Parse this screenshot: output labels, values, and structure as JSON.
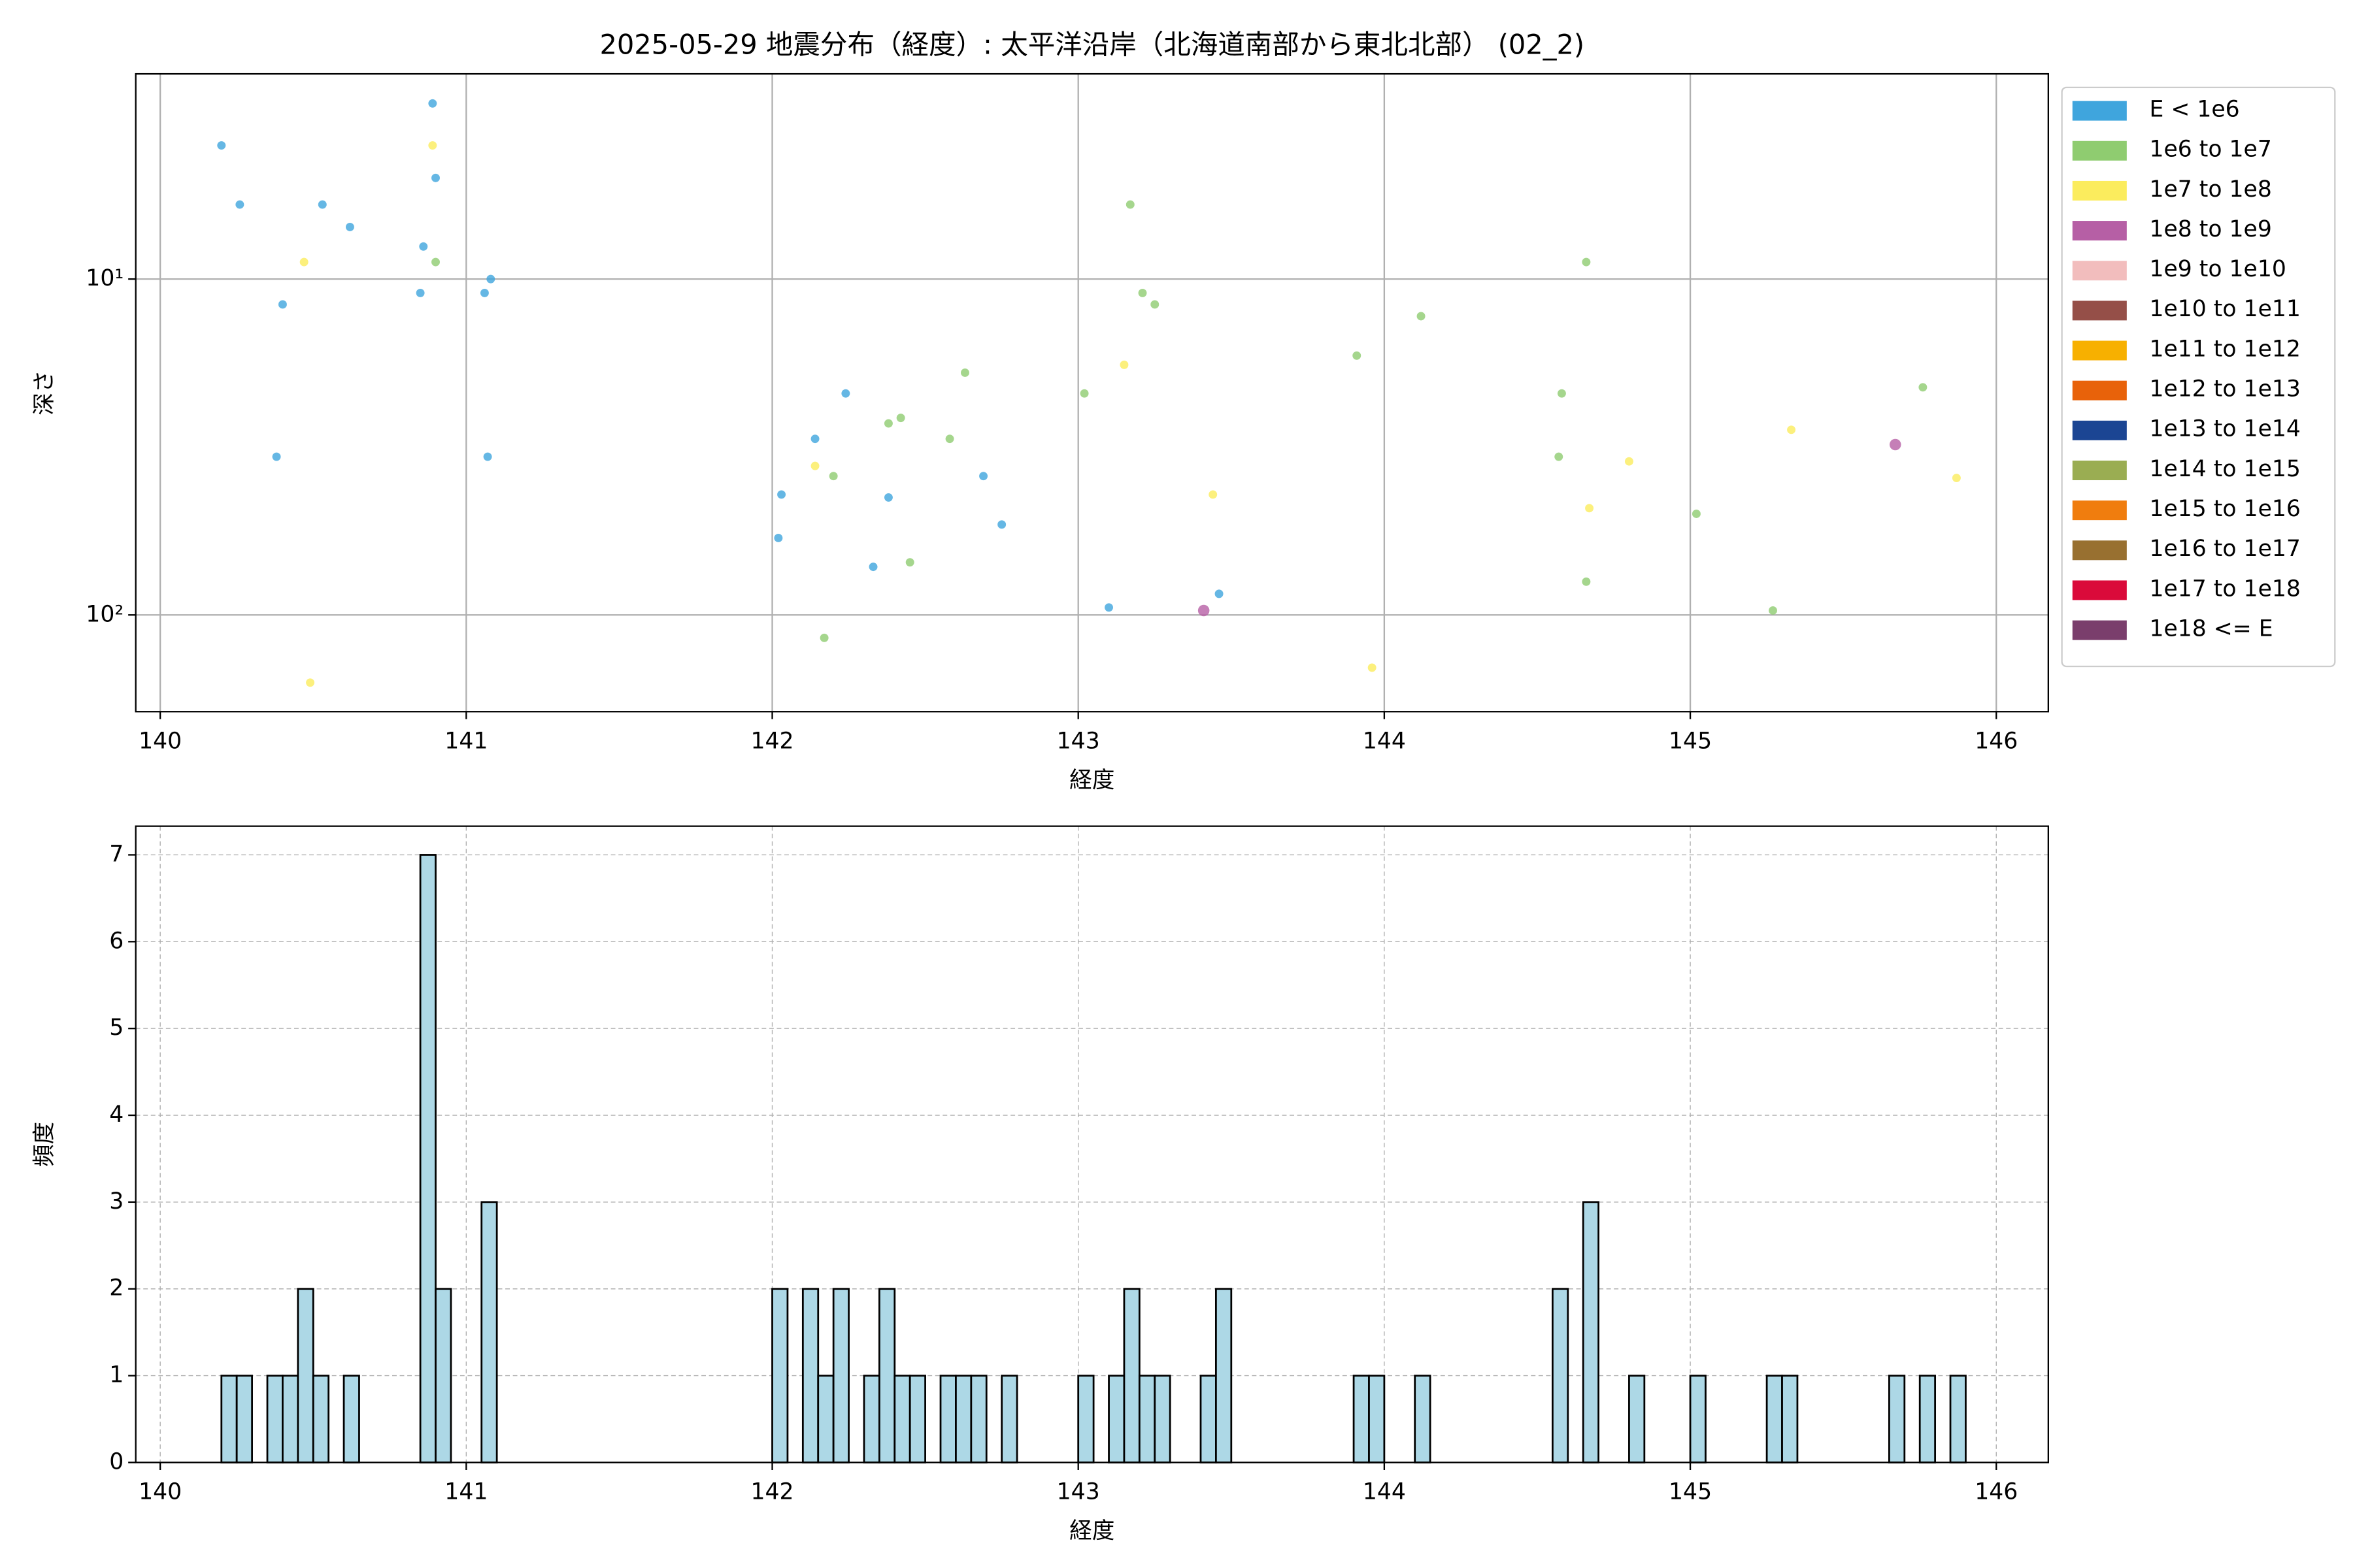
{
  "chart_data": [
    {
      "type": "scatter",
      "title": "2025-05-29 地震分布（経度）: 太平洋沿岸（北海道南部から東北北部） (02_2)",
      "xlabel": "経度",
      "ylabel": "深さ",
      "xlim": [
        139.92,
        146.17
      ],
      "xticks": [
        140,
        141,
        142,
        143,
        144,
        145,
        146
      ],
      "ylim": [
        2.45,
        194
      ],
      "y_log": true,
      "y_inverted": true,
      "yticks": [
        {
          "value": 10,
          "label": "10¹"
        },
        {
          "value": 100,
          "label": "10²"
        }
      ],
      "grid": true,
      "grid_style": "solid",
      "legend": "right",
      "series": [
        {
          "name": "E < 1e6",
          "color": "#3fa5dd",
          "x": [
            140.2,
            140.26,
            140.53,
            140.62,
            140.89,
            140.9,
            140.86,
            140.85,
            140.4,
            141.06,
            141.08,
            140.38,
            141.07,
            142.24,
            142.14,
            142.03,
            142.38,
            142.02,
            142.33,
            142.69,
            142.75,
            143.1,
            143.46
          ],
          "values": [
            4.0,
            6.0,
            6.0,
            7.0,
            3.0,
            5.0,
            8.0,
            11.0,
            11.9,
            11.0,
            10.0,
            33.8,
            33.8,
            21.9,
            29.9,
            43.8,
            44.7,
            59,
            71.9,
            38.6,
            53.8,
            95,
            86.5
          ]
        },
        {
          "name": "1e6 to 1e7",
          "color": "#8fcc70",
          "x": [
            140.9,
            143.17,
            143.21,
            143.25,
            142.63,
            143.02,
            142.42,
            142.38,
            142.58,
            142.2,
            142.45,
            142.17,
            143.91,
            144.12,
            144.66,
            144.58,
            144.57,
            144.66,
            145.02,
            145.27,
            145.76
          ],
          "values": [
            8.9,
            6.0,
            11.0,
            11.9,
            19,
            21.9,
            25.9,
            26.9,
            29.9,
            38.6,
            69.7,
            117,
            16.9,
            12.9,
            8.9,
            21.9,
            33.8,
            79.6,
            50,
            97,
            21
          ]
        },
        {
          "name": "1e7 to 1e8",
          "color": "#fbec5d",
          "x": [
            140.89,
            140.47,
            140.49,
            142.14,
            143.15,
            143.44,
            143.96,
            144.67,
            144.8,
            145.33,
            145.87
          ],
          "values": [
            4.0,
            8.9,
            159,
            36,
            18,
            43.8,
            143.5,
            48.1,
            34.9,
            28.1,
            39.1
          ]
        },
        {
          "name": "1e8 to 1e9",
          "color": "#b65fa5",
          "x": [
            143.41,
            145.67
          ],
          "values": [
            97,
            31.1
          ]
        },
        {
          "name": "1e9 to 1e10",
          "color": "#f2bdbd",
          "x": [],
          "values": []
        },
        {
          "name": "1e10 to 1e11",
          "color": "#954f48",
          "x": [],
          "values": []
        },
        {
          "name": "1e11 to 1e12",
          "color": "#f7b000",
          "x": [],
          "values": []
        },
        {
          "name": "1e12 to 1e13",
          "color": "#e8620a",
          "x": [],
          "values": []
        },
        {
          "name": "1e13 to 1e14",
          "color": "#1b4593",
          "x": [],
          "values": []
        },
        {
          "name": "1e14 to 1e15",
          "color": "#9aad52",
          "x": [],
          "values": []
        },
        {
          "name": "1e15 to 1e16",
          "color": "#f07d0e",
          "x": [],
          "values": []
        },
        {
          "name": "1e16 to 1e17",
          "color": "#987030",
          "x": [],
          "values": []
        },
        {
          "name": "1e17 to 1e18",
          "color": "#da0a3a",
          "x": [],
          "values": []
        },
        {
          "name": "1e18 <= E",
          "color": "#7a3e6c",
          "x": [],
          "values": []
        }
      ]
    },
    {
      "type": "histogram",
      "xlabel": "経度",
      "ylabel": "頻度",
      "xlim": [
        139.92,
        146.17
      ],
      "xticks": [
        140,
        141,
        142,
        143,
        144,
        145,
        146
      ],
      "ylim": [
        0,
        7.33
      ],
      "yticks": [
        0,
        1,
        2,
        3,
        4,
        5,
        6,
        7
      ],
      "grid": true,
      "grid_style": "dashed",
      "color": "#add8e6",
      "edgecolor": "#000000",
      "bins": [
        140.2,
        140.25,
        140.3,
        140.35,
        140.4,
        140.45,
        140.5,
        140.55,
        140.6,
        140.65,
        140.7,
        140.75,
        140.8,
        140.85,
        140.9,
        140.95,
        141.0,
        141.05,
        141.1,
        141.15,
        141.2,
        141.25,
        141.3,
        141.35,
        141.4,
        141.45,
        141.5,
        141.55,
        141.6,
        141.65,
        141.7,
        141.75,
        141.8,
        141.85,
        141.9,
        141.95,
        142.0,
        142.05,
        142.1,
        142.15,
        142.2,
        142.25,
        142.3,
        142.35,
        142.4,
        142.45,
        142.5,
        142.55,
        142.6,
        142.65,
        142.7,
        142.75,
        142.8,
        142.85,
        142.9,
        142.95,
        143.0,
        143.05,
        143.1,
        143.15,
        143.2,
        143.25,
        143.3,
        143.35,
        143.4,
        143.45,
        143.5,
        143.55,
        143.6,
        143.65,
        143.7,
        143.75,
        143.8,
        143.85,
        143.9,
        143.95,
        144.0,
        144.05,
        144.1,
        144.15,
        144.2,
        144.25,
        144.3,
        144.35,
        144.4,
        144.45,
        144.5,
        144.55,
        144.6,
        144.65,
        144.7,
        144.75,
        144.8,
        144.85,
        144.9,
        144.95,
        145.0,
        145.05,
        145.1,
        145.15,
        145.2,
        145.25,
        145.3,
        145.35,
        145.4,
        145.45,
        145.5,
        145.55,
        145.6,
        145.65,
        145.7,
        145.75,
        145.8,
        145.85,
        145.9
      ],
      "values": [
        1,
        1,
        0,
        1,
        1,
        2,
        1,
        0,
        1,
        0,
        0,
        0,
        0,
        7,
        2,
        0,
        0,
        3,
        0,
        0,
        0,
        0,
        0,
        0,
        0,
        0,
        0,
        0,
        0,
        0,
        0,
        0,
        0,
        0,
        0,
        0,
        2,
        0,
        2,
        1,
        2,
        0,
        1,
        2,
        1,
        1,
        0,
        1,
        1,
        1,
        0,
        1,
        0,
        0,
        0,
        0,
        1,
        0,
        1,
        2,
        1,
        1,
        0,
        0,
        1,
        2,
        0,
        0,
        0,
        0,
        0,
        0,
        0,
        0,
        1,
        1,
        0,
        0,
        1,
        0,
        0,
        0,
        0,
        0,
        0,
        0,
        0,
        2,
        0,
        3,
        0,
        0,
        1,
        0,
        0,
        0,
        1,
        0,
        0,
        0,
        0,
        1,
        1,
        0,
        0,
        0,
        0,
        0,
        0,
        1,
        0,
        1,
        0,
        1
      ]
    }
  ]
}
